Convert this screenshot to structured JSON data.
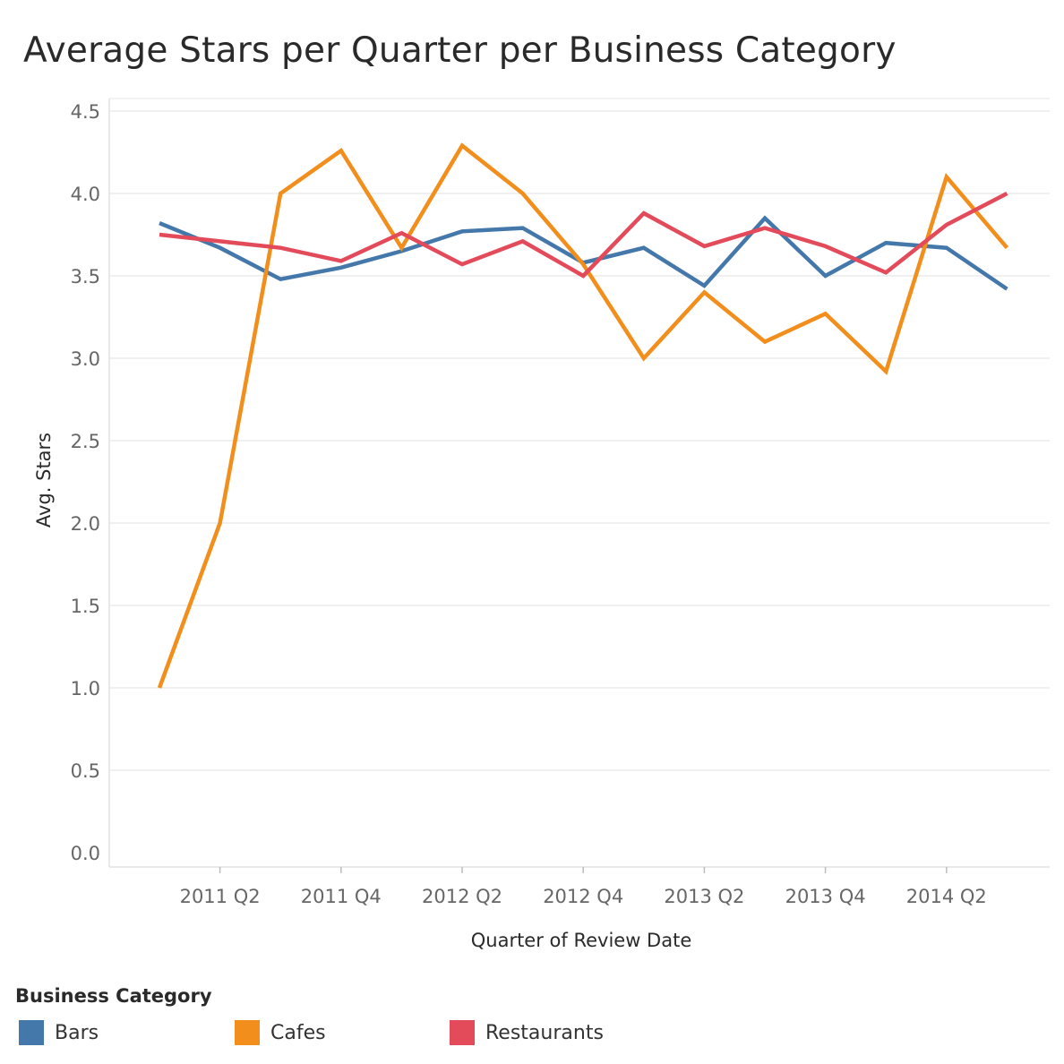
{
  "chart_data": {
    "type": "line",
    "title": "Average Stars per Quarter per Business Category",
    "xlabel": "Quarter of Review Date",
    "ylabel": "Avg. Stars",
    "ylim": [
      0,
      4.5
    ],
    "yticks": [
      "0.0",
      "0.5",
      "1.0",
      "1.5",
      "2.0",
      "2.5",
      "3.0",
      "3.5",
      "4.0",
      "4.5"
    ],
    "ytick_values": [
      0,
      0.5,
      1.0,
      1.5,
      2.0,
      2.5,
      3.0,
      3.5,
      4.0,
      4.5
    ],
    "x": [
      "2011 Q1",
      "2011 Q2",
      "2011 Q3",
      "2011 Q4",
      "2012 Q1",
      "2012 Q2",
      "2012 Q3",
      "2012 Q4",
      "2013 Q1",
      "2013 Q2",
      "2013 Q3",
      "2013 Q4",
      "2014 Q1",
      "2014 Q2",
      "2014 Q3"
    ],
    "xtick_labels": [
      "2011 Q2",
      "2011 Q4",
      "2012 Q2",
      "2012 Q4",
      "2013 Q2",
      "2013 Q4",
      "2014 Q2"
    ],
    "grid": true,
    "legend_title": "Business Category",
    "series": [
      {
        "name": "Bars",
        "color": "#4477aa",
        "values": [
          3.82,
          3.67,
          3.48,
          3.55,
          3.65,
          3.77,
          3.79,
          3.58,
          3.67,
          3.44,
          3.85,
          3.5,
          3.7,
          3.67,
          3.42
        ]
      },
      {
        "name": "Cafes",
        "color": "#f28e1c",
        "values": [
          1.0,
          2.0,
          4.0,
          4.26,
          3.67,
          4.29,
          4.0,
          3.57,
          3.0,
          3.4,
          3.1,
          3.27,
          2.92,
          4.1,
          3.67
        ]
      },
      {
        "name": "Restaurants",
        "color": "#e34a5a",
        "values": [
          3.75,
          3.71,
          3.67,
          3.59,
          3.76,
          3.57,
          3.71,
          3.5,
          3.88,
          3.68,
          3.79,
          3.68,
          3.52,
          3.81,
          4.0
        ]
      }
    ]
  }
}
